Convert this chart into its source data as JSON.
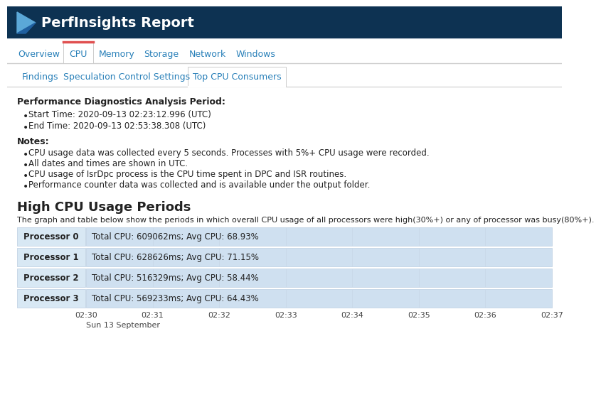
{
  "header_bg": "#0d3252",
  "header_text": "PerfInsights Report",
  "header_text_color": "#ffffff",
  "nav_tabs": [
    "Overview",
    "CPU",
    "Memory",
    "Storage",
    "Network",
    "Windows"
  ],
  "active_nav": "CPU",
  "sub_tabs": [
    "Findings",
    "Speculation Control Settings",
    "Top CPU Consumers"
  ],
  "active_sub": "Top CPU Consumers",
  "section_title1": "Performance Diagnostics Analysis Period:",
  "bullet_items1": [
    "Start Time: 2020-09-13 02:23:12.996 (UTC)",
    "End Time: 2020-09-13 02:53:38.308 (UTC)"
  ],
  "notes_title": "Notes:",
  "notes_items": [
    "CPU usage data was collected every 5 seconds. Processes with 5%+ CPU usage were recorded.",
    "All dates and times are shown in UTC.",
    "CPU usage of IsrDpc process is the CPU time spent in DPC and ISR routines.",
    "Performance counter data was collected and is available under the output folder."
  ],
  "section_title2": "High CPU Usage Periods",
  "description": "The graph and table below show the periods in which overall CPU usage of all processors were high(30%+) or any of processor was busy(80%+).",
  "processors": [
    {
      "label": "Processor 0",
      "info": "Total CPU: 609062ms; Avg CPU: 68.93%"
    },
    {
      "label": "Processor 1",
      "info": "Total CPU: 628626ms; Avg CPU: 71.15%"
    },
    {
      "label": "Processor 2",
      "info": "Total CPU: 516329ms; Avg CPU: 58.44%"
    },
    {
      "label": "Processor 3",
      "info": "Total CPU: 569233ms; Avg CPU: 64.43%"
    }
  ],
  "time_labels": [
    "02:30",
    "02:31",
    "02:32",
    "02:33",
    "02:34",
    "02:35",
    "02:36",
    "02:37"
  ],
  "date_label": "Sun 13 September",
  "bar_bg_color": "#cfe0f0",
  "bar_label_bg": "#d8e8f4",
  "accent_color": "#2980b9",
  "body_bg": "#ffffff",
  "text_color": "#222222",
  "header_bg_color": "#0d3252",
  "nav_border_color": "#cccccc",
  "tab_active_top_border": "#e05050",
  "grid_line_color": "#c8d8e8"
}
